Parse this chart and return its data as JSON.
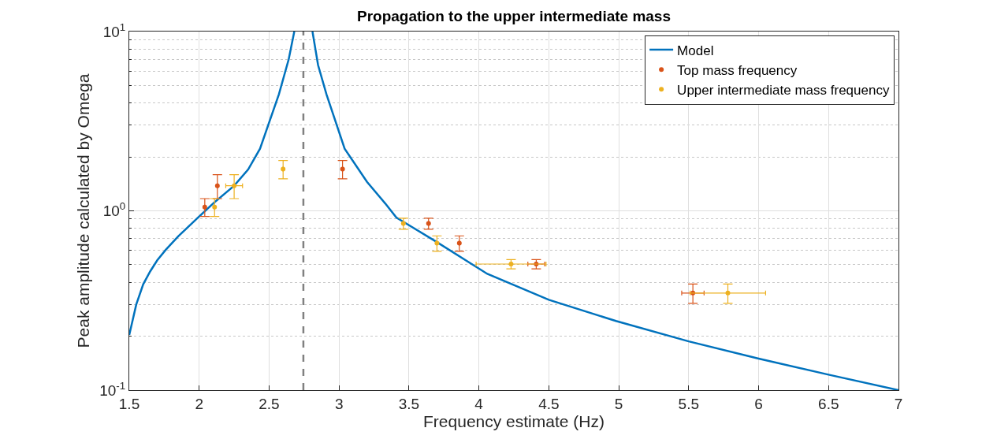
{
  "chart_data": {
    "type": "scatter",
    "title": "Propagation to the upper intermediate mass",
    "xlabel": "Frequency estimate (Hz)",
    "ylabel": "Peak amplitude calculated by Omega",
    "series": [
      {
        "name": "Model",
        "type": "line",
        "color": "#0072bd",
        "line_style": "solid",
        "marker": "none",
        "x": [
          1.5,
          1.55,
          1.6,
          1.65,
          1.7,
          1.76,
          1.85,
          2.0,
          2.1,
          2.25,
          2.35,
          2.435,
          2.57,
          2.64,
          2.68
        ],
        "values": [
          0.203,
          0.3,
          0.39,
          0.46,
          0.53,
          0.605,
          0.72,
          0.93,
          1.1,
          1.38,
          1.7,
          2.22,
          4.47,
          7.0,
          10
        ]
      },
      {
        "type": "line",
        "color": "#0072bd",
        "line_style": "solid",
        "marker": "none",
        "x": [
          2.81,
          2.85,
          2.91,
          3.04,
          3.2,
          3.33,
          3.41,
          3.69,
          4.06,
          4.5,
          4.98,
          5.5,
          6.0,
          6.5,
          7.0
        ],
        "values": [
          10,
          6.5,
          4.47,
          2.22,
          1.45,
          1.1,
          0.917,
          0.676,
          0.445,
          0.319,
          0.243,
          0.187,
          0.15,
          0.122,
          0.1
        ]
      },
      {
        "name": "Top mass frequency",
        "color": "#d95319",
        "marker": "circle",
        "x": [
          2.04,
          2.13,
          3.025,
          3.64,
          3.86,
          4.41,
          5.53
        ],
        "values": [
          1.05,
          1.38,
          1.71,
          0.85,
          0.66,
          0.505,
          0.348
        ],
        "errors": [
          0.12,
          0.21,
          0.2,
          0.06,
          0.065,
          0.03,
          0.043
        ],
        "xerrors": [
          null,
          null,
          null,
          null,
          null,
          0.06,
          0.08
        ]
      },
      {
        "name": "Upper intermediate mass frequency",
        "color": "#edb120",
        "marker": "circle",
        "x": [
          2.11,
          2.25,
          2.6,
          3.46,
          3.7,
          4.23,
          5.78
        ],
        "values": [
          1.05,
          1.38,
          1.71,
          0.85,
          0.66,
          0.505,
          0.348
        ],
        "errors": [
          0.12,
          0.21,
          0.2,
          0.06,
          0.065,
          0.03,
          0.043
        ],
        "xerrors": [
          null,
          0.06,
          null,
          null,
          null,
          0.25,
          0.27
        ]
      }
    ],
    "ref_lines": [
      {
        "axis": "x",
        "value": 2.745,
        "color": "#808080",
        "line_style": "dashed"
      }
    ],
    "log": "y",
    "xlim": [
      1.5,
      7
    ],
    "xticks": [
      1.5,
      2,
      2.5,
      3,
      3.5,
      4,
      4.5,
      5,
      5.5,
      6,
      6.5,
      7
    ],
    "ylim": [
      0.1,
      10
    ],
    "yticks": [
      {
        "value": 0.1,
        "label": "10$^{-1}$"
      },
      {
        "value": 1,
        "label": "10$^{0}$"
      },
      {
        "value": 10,
        "label": "10$^{1}$"
      }
    ],
    "grid": true,
    "legend": "top right"
  }
}
